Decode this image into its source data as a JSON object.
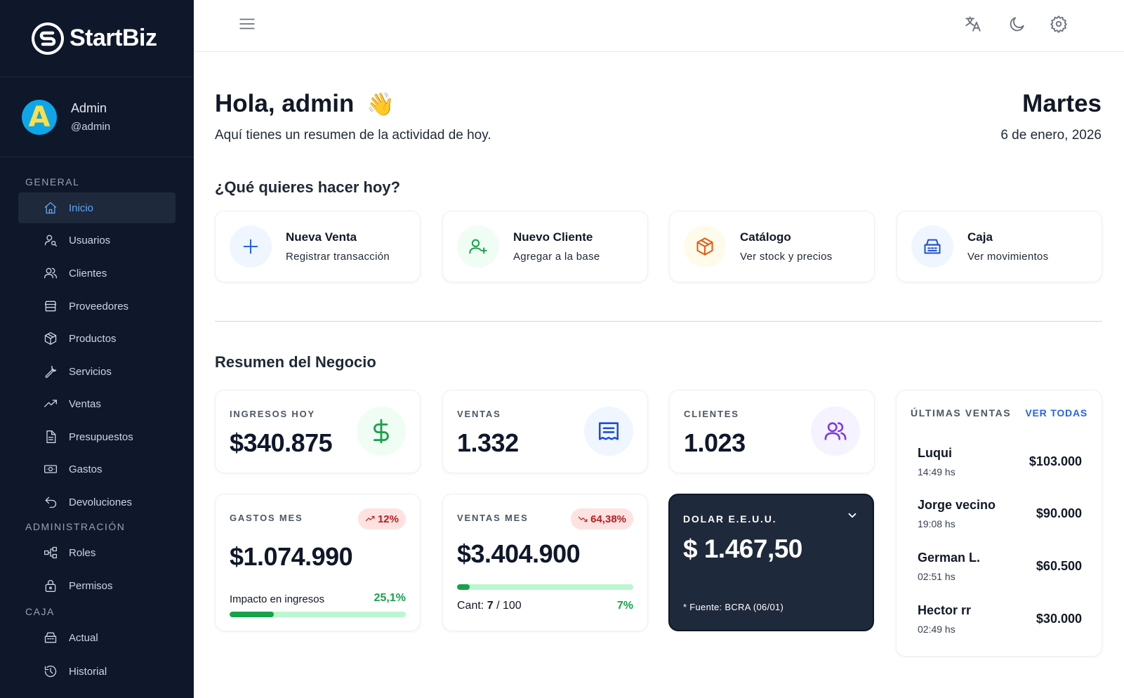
{
  "brand": {
    "name": "StartBiz"
  },
  "user": {
    "name": "Admin",
    "handle": "@admin",
    "avatar_letter": "A"
  },
  "sidebar": {
    "sections": [
      {
        "title": "GENERAL"
      },
      {
        "title": "ADMINISTRACIÓN"
      },
      {
        "title": "CAJA"
      }
    ],
    "items": [
      {
        "label": "Inicio",
        "icon": "home-icon",
        "active": true
      },
      {
        "label": "Usuarios",
        "icon": "user-search-icon"
      },
      {
        "label": "Clientes",
        "icon": "users-icon"
      },
      {
        "label": "Proveedores",
        "icon": "store-icon"
      },
      {
        "label": "Productos",
        "icon": "box-icon"
      },
      {
        "label": "Servicios",
        "icon": "wrench-icon"
      },
      {
        "label": "Ventas",
        "icon": "trending-up-icon"
      },
      {
        "label": "Presupuestos",
        "icon": "file-icon"
      },
      {
        "label": "Gastos",
        "icon": "banknote-icon"
      },
      {
        "label": "Devoluciones",
        "icon": "undo-icon"
      },
      {
        "label": "Roles",
        "icon": "hierarchy-icon"
      },
      {
        "label": "Permisos",
        "icon": "lock-icon"
      },
      {
        "label": "Actual",
        "icon": "register-icon"
      },
      {
        "label": "Historial",
        "icon": "history-icon"
      }
    ]
  },
  "topbar": {
    "icons": [
      "menu-icon",
      "translate-icon",
      "moon-icon",
      "gear-icon"
    ]
  },
  "header": {
    "greeting": "Hola, admin",
    "wave": "👋",
    "subtitle": "Aquí tienes un resumen de la actividad de hoy.",
    "day": "Martes",
    "date": "6 de enero, 2026"
  },
  "quick_actions": {
    "title": "¿Qué quieres hacer hoy?",
    "items": [
      {
        "title": "Nueva Venta",
        "subtitle": "Registrar transacción",
        "icon": "plus-icon"
      },
      {
        "title": "Nuevo Cliente",
        "subtitle": "Agregar a la base",
        "icon": "user-plus-icon"
      },
      {
        "title": "Catálogo",
        "subtitle": "Ver stock y precios",
        "icon": "package-icon"
      },
      {
        "title": "Caja",
        "subtitle": "Ver movimientos",
        "icon": "cash-register-icon"
      }
    ]
  },
  "summary": {
    "title": "Resumen del Negocio",
    "ingresos": {
      "label": "INGRESOS HOY",
      "value": "$340.875",
      "icon": "dollar-icon"
    },
    "ventas": {
      "label": "VENTAS",
      "value": "1.332",
      "icon": "receipt-icon"
    },
    "clientes": {
      "label": "CLIENTES",
      "value": "1.023",
      "icon": "users-icon"
    },
    "gastos_mes": {
      "label": "GASTOS MES",
      "badge": "12%",
      "value": "$1.074.990",
      "impact_label": "Impacto en ingresos",
      "impact_value": "25,1%",
      "impact_fraction": 0.251
    },
    "ventas_mes": {
      "label": "VENTAS MES",
      "badge": "64,38%",
      "value": "$3.404.900",
      "cant_label": "Cant:",
      "cant_value": "7",
      "cant_total": "/ 100",
      "percent": "7%",
      "fraction": 0.07
    },
    "dolar": {
      "label": "DOLAR E.E.U.U.",
      "value": "$ 1.467,50",
      "source": "* Fuente: BCRA (06/01)"
    }
  },
  "ultimas_ventas": {
    "title": "ÚLTIMAS VENTAS",
    "link": "VER TODAS",
    "rows": [
      {
        "name": "Luqui",
        "time": "14:49 hs",
        "amount": "$103.000"
      },
      {
        "name": "Jorge vecino",
        "time": "19:08 hs",
        "amount": "$90.000"
      },
      {
        "name": "German L.",
        "time": "02:51 hs",
        "amount": "$60.500"
      },
      {
        "name": "Hector rr",
        "time": "02:49 hs",
        "amount": "$30.000"
      }
    ]
  },
  "colors": {
    "sidebar": "#0f172a",
    "accent": "#2563eb",
    "positive": "#16a34a",
    "negative": "#b91c1c"
  }
}
